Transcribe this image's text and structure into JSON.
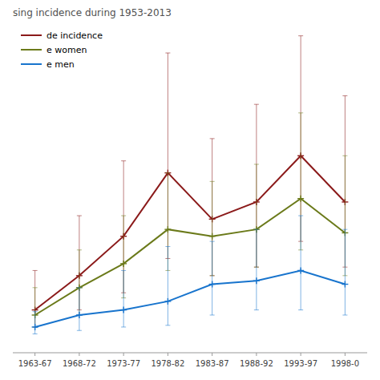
{
  "chart_data": {
    "type": "line",
    "title": "sing incidence during 1953-2013",
    "categories": [
      "1963-67",
      "1968-72",
      "1973-77",
      "1978-82",
      "1983-87",
      "1988-92",
      "1993-97",
      "1998-0"
    ],
    "series": [
      {
        "name": "de incidence",
        "color": "#8B1A1A",
        "marker": "plus",
        "values": [
          1.5,
          3.5,
          5.8,
          9.5,
          6.8,
          7.8,
          10.5,
          7.8
        ],
        "upper": [
          3.8,
          7.0,
          10.2,
          16.5,
          11.5,
          13.5,
          17.5,
          14.0
        ],
        "lower": [
          0.5,
          1.5,
          2.5,
          4.5,
          3.5,
          4.0,
          5.5,
          4.0
        ]
      },
      {
        "name": "e women",
        "color": "#6B7A1A",
        "marker": "plus",
        "values": [
          1.2,
          2.8,
          4.2,
          6.2,
          5.8,
          6.2,
          8.0,
          6.0
        ],
        "upper": [
          2.8,
          5.0,
          7.0,
          9.5,
          9.0,
          10.0,
          13.0,
          10.5
        ],
        "lower": [
          0.5,
          1.2,
          2.2,
          3.8,
          3.5,
          4.0,
          5.0,
          3.5
        ]
      },
      {
        "name": "e men",
        "color": "#1874CD",
        "marker": "plus",
        "values": [
          0.5,
          1.2,
          1.5,
          2.0,
          3.0,
          3.2,
          3.8,
          3.0
        ],
        "upper": [
          1.4,
          2.8,
          3.8,
          5.2,
          5.5,
          6.2,
          7.0,
          6.2
        ],
        "lower": [
          0.1,
          0.3,
          0.5,
          0.6,
          1.2,
          1.5,
          1.5,
          1.2
        ]
      }
    ],
    "ylim": [
      -1.0,
      18
    ],
    "tick_labels": "x",
    "grid": false,
    "legend": "upper left"
  }
}
